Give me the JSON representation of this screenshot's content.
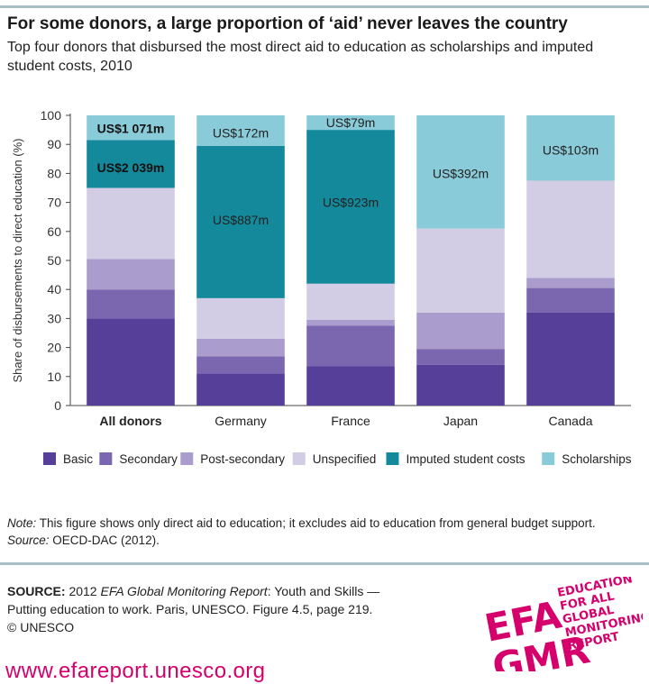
{
  "header": {
    "title": "For some donors, a large proportion of ‘aid’ never leaves the country",
    "subtitle": "Top four donors that disbursed the most direct aid to education as scholarships and imputed student costs, 2010"
  },
  "chart_data": {
    "type": "bar",
    "stacked": true,
    "categories": [
      "All donors",
      "Germany",
      "France",
      "Japan",
      "Canada"
    ],
    "ylabel": "Share of disbursements to direct education (%)",
    "ylim": [
      0,
      100
    ],
    "yticks": [
      0,
      10,
      20,
      30,
      40,
      50,
      60,
      70,
      80,
      90,
      100
    ],
    "legend_position": "bottom",
    "series": [
      {
        "name": "Basic",
        "color": "#553f98",
        "values": [
          30,
          11,
          13.5,
          14,
          32
        ]
      },
      {
        "name": "Secondary",
        "color": "#7a67af",
        "values": [
          10,
          6,
          14,
          5.5,
          8.5
        ]
      },
      {
        "name": "Post-secondary",
        "color": "#aa9ccc",
        "values": [
          10.5,
          6,
          2,
          12.5,
          3.5
        ]
      },
      {
        "name": "Unspecified",
        "color": "#d2cce4",
        "values": [
          24.5,
          14,
          12.5,
          29,
          33.5
        ]
      },
      {
        "name": "Imputed student costs",
        "color": "#13899b",
        "values": [
          16.5,
          52.5,
          53,
          0,
          0
        ]
      },
      {
        "name": "Scholarships",
        "color": "#8acbd9",
        "values": [
          8.5,
          10.5,
          5,
          39,
          22.5
        ]
      }
    ],
    "annotations": [
      {
        "category": "All donors",
        "series": "Scholarships",
        "text": "US$1 071m",
        "y": 95.5,
        "bold": true
      },
      {
        "category": "All donors",
        "series": "Imputed student costs",
        "text": "US$2 039m",
        "y": 82,
        "bold": true
      },
      {
        "category": "Germany",
        "series": "Scholarships",
        "text": "US$172m",
        "y": 94
      },
      {
        "category": "Germany",
        "series": "Imputed student costs",
        "text": "US$887m",
        "y": 64
      },
      {
        "category": "France",
        "series": "Scholarships",
        "text": "US$79m",
        "y": 97.5
      },
      {
        "category": "France",
        "series": "Imputed student costs",
        "text": "US$923m",
        "y": 70
      },
      {
        "category": "Japan",
        "series": "Scholarships",
        "text": "US$392m",
        "y": 80
      },
      {
        "category": "Canada",
        "series": "Scholarships",
        "text": "US$103m",
        "y": 88
      }
    ],
    "bold_category": "All donors"
  },
  "note": {
    "label": "Note:",
    "text": "This figure shows only direct aid to education; it excludes aid to education from general budget support.",
    "source_label": "Source:",
    "source_text": "OECD-DAC (2012)."
  },
  "source": {
    "label": "SOURCE:",
    "text_before": "2012",
    "italic": "EFA Global Monitoring Report",
    "text_after": ": Youth and Skills — Putting education to work. Paris, UNESCO. Figure 4.5, page 219.",
    "copyright": "© UNESCO"
  },
  "logo": {
    "letters_top": "EFA",
    "letters_bottom": "GMR",
    "lines": [
      "EDUCATION",
      "FOR ALL",
      "GLOBAL",
      "MONITORING",
      "REPORT"
    ],
    "color": "#d6006d"
  },
  "footer": {
    "url": "www.efareport.unesco.org"
  }
}
